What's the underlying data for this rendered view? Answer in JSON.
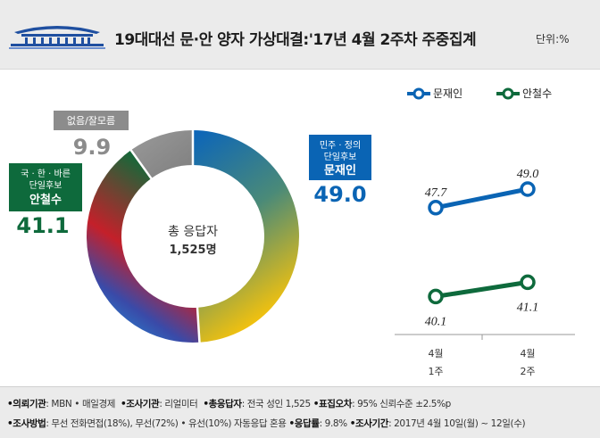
{
  "header": {
    "title": "19대대선 문·안 양자 가상대결:'17년 4월 2주차 주중집계",
    "unit": "단위:%"
  },
  "colors": {
    "moon": "#0a64b4",
    "ahn": "#0e6a3c",
    "undecided": "#8c8c8c"
  },
  "donut": {
    "center_label": "총 응답자",
    "center_value": "1,525명",
    "moon_tag": [
      "민주 · 정의",
      "단일후보"
    ],
    "moon_name": "문재인",
    "ahn_tag": [
      "국 · 한 · 바른",
      "단일후보"
    ],
    "ahn_name": "안철수",
    "undecided_label": "없음/잘모름"
  },
  "chart_data": [
    {
      "type": "pie",
      "title": "",
      "slices": [
        {
          "label": "문재인",
          "value": 49.0
        },
        {
          "label": "안철수",
          "value": 41.1
        },
        {
          "label": "없음/잘모름",
          "value": 9.9
        }
      ]
    },
    {
      "type": "line",
      "title": "",
      "categories": [
        "4월 1주",
        "4월 2주"
      ],
      "category_lines": [
        [
          "4월",
          "1주"
        ],
        [
          "4월",
          "2주"
        ]
      ],
      "series": [
        {
          "name": "문재인",
          "values": [
            47.7,
            49.0
          ]
        },
        {
          "name": "안철수",
          "values": [
            40.1,
            41.1
          ]
        }
      ],
      "legend": "top"
    }
  ],
  "footer": {
    "line1": [
      {
        "key": "•의뢰기관",
        "text": ": MBN • 매일경제"
      },
      {
        "key": "•조사기관",
        "text": ": 리얼미터"
      },
      {
        "key": "•총응답자",
        "text": ": 전국 성인 1,525"
      },
      {
        "key": "•표집오차",
        "text": ": 95% 신뢰수준 ±2.5%p"
      }
    ],
    "line2": [
      {
        "key": "•조사방법",
        "text": ": 무선 전화면접(18%), 무선(72%) • 유선(10%) 자동응답 혼용"
      },
      {
        "key": "•응답률",
        "text": ": 9.8%"
      },
      {
        "key": "•조사기간",
        "text": ": 2017년 4월 10일(월) ~ 12일(수)"
      }
    ]
  }
}
